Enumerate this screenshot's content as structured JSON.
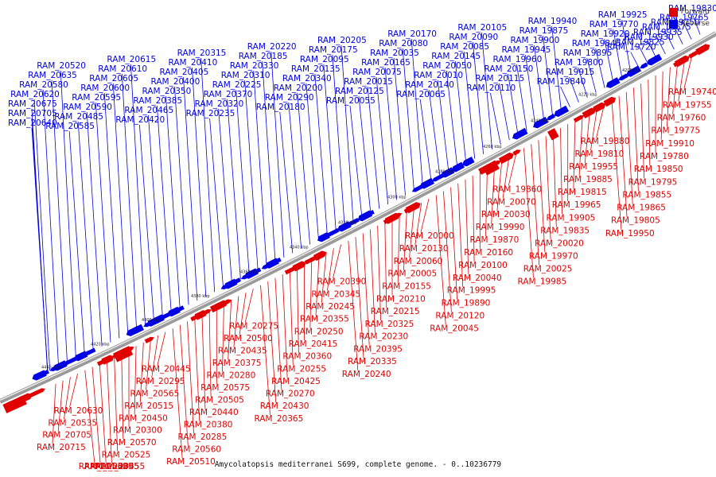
{
  "colors": {
    "forward": "#e00000",
    "reverse": "#0000e6",
    "backbone": "#9a9a9a"
  },
  "legend": {
    "forward": "Forward",
    "reverse": "Reverse"
  },
  "caption": "Amycolatopsis mediterranei S699, complete genome. - 0..10236779",
  "ticks": [
    "4200 kbp",
    "4220 kbp",
    "4240 kbp",
    "4260 kbp",
    "4280 kbp",
    "4300 kbp",
    "4320 kbp",
    "4340 kbp",
    "4360 kbp",
    "4380 kbp",
    "4400 kbp",
    "4420 kbp",
    "4440 kbp"
  ],
  "reverse_labels": [
    "RAM_19830",
    "RAM_19765",
    "RAM_19750",
    "RAM_19675",
    "RAM_19935",
    "RAM_19930",
    "RAM_19825",
    "RAM_19720",
    "RAM_19925",
    "RAM_19770",
    "RAM_19920",
    "RAM_19845",
    "RAM_19895",
    "RAM_19800",
    "RAM_19915",
    "RAM_19840",
    "RAM_19940",
    "RAM_19875",
    "RAM_19900",
    "RAM_19945",
    "RAM_19960",
    "RAM_20150",
    "RAM_20115",
    "RAM_20110",
    "RAM_20105",
    "RAM_20090",
    "RAM_20085",
    "RAM_20145",
    "RAM_20050",
    "RAM_20010",
    "RAM_20140",
    "RAM_20065",
    "RAM_20170",
    "RAM_20080",
    "RAM_20035",
    "RAM_20165",
    "RAM_20075",
    "RAM_20015",
    "RAM_20125",
    "RAM_20055",
    "RAM_20205",
    "RAM_20175",
    "RAM_20095",
    "RAM_20135",
    "RAM_20340",
    "RAM_20200",
    "RAM_20290",
    "RAM_20180",
    "RAM_20220",
    "RAM_20185",
    "RAM_20330",
    "RAM_20310",
    "RAM_20225",
    "RAM_20370",
    "RAM_20320",
    "RAM_20235",
    "RAM_20315",
    "RAM_20410",
    "RAM_20405",
    "RAM_20400",
    "RAM_20350",
    "RAM_20385",
    "RAM_20465",
    "RAM_20420",
    "RAM_20615",
    "RAM_20610",
    "RAM_20605",
    "RAM_20600",
    "RAM_20595",
    "RAM_20590",
    "RAM_20485",
    "RAM_20585",
    "RAM_20520",
    "RAM_20635",
    "RAM_20580",
    "RAM_20620",
    "RAM_20675",
    "RAM_20705",
    "RAM_20640"
  ],
  "forward_labels": [
    "RAM_19740",
    "RAM_19755",
    "RAM_19760",
    "RAM_19775",
    "RAM_19910",
    "RAM_19780",
    "RAM_19850",
    "RAM_19795",
    "RAM_19855",
    "RAM_19865",
    "RAM_19805",
    "RAM_19950",
    "RAM_19880",
    "RAM_19810",
    "RAM_19955",
    "RAM_19885",
    "RAM_19815",
    "RAM_19965",
    "RAM_19905",
    "RAM_19835",
    "RAM_20020",
    "RAM_19970",
    "RAM_20025",
    "RAM_19985",
    "RAM_19860",
    "RAM_20070",
    "RAM_20030",
    "RAM_19990",
    "RAM_19870",
    "RAM_20160",
    "RAM_20100",
    "RAM_20040",
    "RAM_19995",
    "RAM_19890",
    "RAM_20120",
    "RAM_20045",
    "RAM_20000",
    "RAM_20130",
    "RAM_20060",
    "RAM_20005",
    "RAM_20155",
    "RAM_20210",
    "RAM_20215",
    "RAM_20325",
    "RAM_20230",
    "RAM_20395",
    "RAM_20335",
    "RAM_20240",
    "RAM_20390",
    "RAM_20345",
    "RAM_20245",
    "RAM_20355",
    "RAM_20250",
    "RAM_20415",
    "RAM_20360",
    "RAM_20255",
    "RAM_20425",
    "RAM_20270",
    "RAM_20430",
    "RAM_20365",
    "RAM_20275",
    "RAM_20500",
    "RAM_20435",
    "RAM_20375",
    "RAM_20280",
    "RAM_20575",
    "RAM_20505",
    "RAM_20440",
    "RAM_20380",
    "RAM_20285",
    "RAM_20560",
    "RAM_20510",
    "RAM_20445",
    "RAM_20295",
    "RAM_20565",
    "RAM_20515",
    "RAM_20450",
    "RAM_20300",
    "RAM_20570",
    "RAM_20525",
    "RAM_20455",
    "RAM_20305",
    "RAM_20625",
    "RAM_20530",
    "RAM_20630",
    "RAM_20535",
    "RAM_20705",
    "RAM_20715"
  ]
}
